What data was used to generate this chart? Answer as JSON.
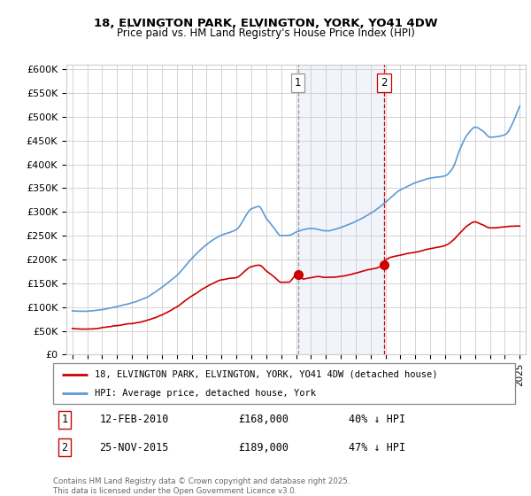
{
  "title1": "18, ELVINGTON PARK, ELVINGTON, YORK, YO41 4DW",
  "title2": "Price paid vs. HM Land Registry's House Price Index (HPI)",
  "ylabel_ticks": [
    "£0",
    "£50K",
    "£100K",
    "£150K",
    "£200K",
    "£250K",
    "£300K",
    "£350K",
    "£400K",
    "£450K",
    "£500K",
    "£550K",
    "£600K"
  ],
  "ytick_values": [
    0,
    50000,
    100000,
    150000,
    200000,
    250000,
    300000,
    350000,
    400000,
    450000,
    500000,
    550000,
    600000
  ],
  "legend_red": "18, ELVINGTON PARK, ELVINGTON, YORK, YO41 4DW (detached house)",
  "legend_blue": "HPI: Average price, detached house, York",
  "marker1_date": "12-FEB-2010",
  "marker1_price": 168000,
  "marker1_label": "40% ↓ HPI",
  "marker1_x": 2010.12,
  "marker2_date": "25-NOV-2015",
  "marker2_price": 189000,
  "marker2_label": "47% ↓ HPI",
  "marker2_x": 2015.9,
  "footnote": "Contains HM Land Registry data © Crown copyright and database right 2025.\nThis data is licensed under the Open Government Licence v3.0.",
  "hpi_color": "#5b9bd5",
  "price_color": "#cc0000",
  "shaded_color": "#ddeeff",
  "vline1_color": "#aaaaaa",
  "vline2_color": "#cc0000",
  "background_color": "#ffffff",
  "grid_color": "#cccccc",
  "box_border_color": "#cc0000",
  "num_box_color": "#aaaaaa"
}
